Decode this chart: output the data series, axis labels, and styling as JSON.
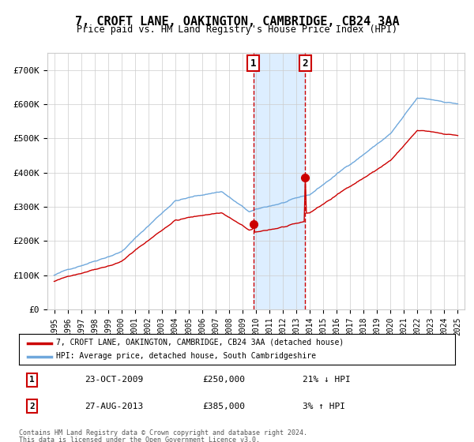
{
  "title": "7, CROFT LANE, OAKINGTON, CAMBRIDGE, CB24 3AA",
  "subtitle": "Price paid vs. HM Land Registry's House Price Index (HPI)",
  "hpi_label": "HPI: Average price, detached house, South Cambridgeshire",
  "property_label": "7, CROFT LANE, OAKINGTON, CAMBRIDGE, CB24 3AA (detached house)",
  "footer_line1": "Contains HM Land Registry data © Crown copyright and database right 2024.",
  "footer_line2": "This data is licensed under the Open Government Licence v3.0.",
  "sale1_date": "23-OCT-2009",
  "sale1_price": 250000,
  "sale1_pct": "21% ↓ HPI",
  "sale2_date": "27-AUG-2013",
  "sale2_price": 385000,
  "sale2_pct": "3% ↑ HPI",
  "sale1_x": 2009.81,
  "sale2_x": 2013.65,
  "hpi_color": "#6fa8dc",
  "property_color": "#cc0000",
  "background_color": "#ffffff",
  "grid_color": "#cccccc",
  "shaded_region_color": "#ddeeff",
  "ylim_min": 0,
  "ylim_max": 750000,
  "xlim_min": 1994.5,
  "xlim_max": 2025.5,
  "ytick_values": [
    0,
    100000,
    200000,
    300000,
    400000,
    500000,
    600000,
    700000
  ],
  "ytick_labels": [
    "£0",
    "£100K",
    "£200K",
    "£300K",
    "£400K",
    "£500K",
    "£600K",
    "£700K"
  ],
  "xtick_years": [
    1995,
    1996,
    1997,
    1998,
    1999,
    2000,
    2001,
    2002,
    2003,
    2004,
    2005,
    2006,
    2007,
    2008,
    2009,
    2010,
    2011,
    2012,
    2013,
    2014,
    2015,
    2016,
    2017,
    2018,
    2019,
    2020,
    2021,
    2022,
    2023,
    2024,
    2025
  ]
}
